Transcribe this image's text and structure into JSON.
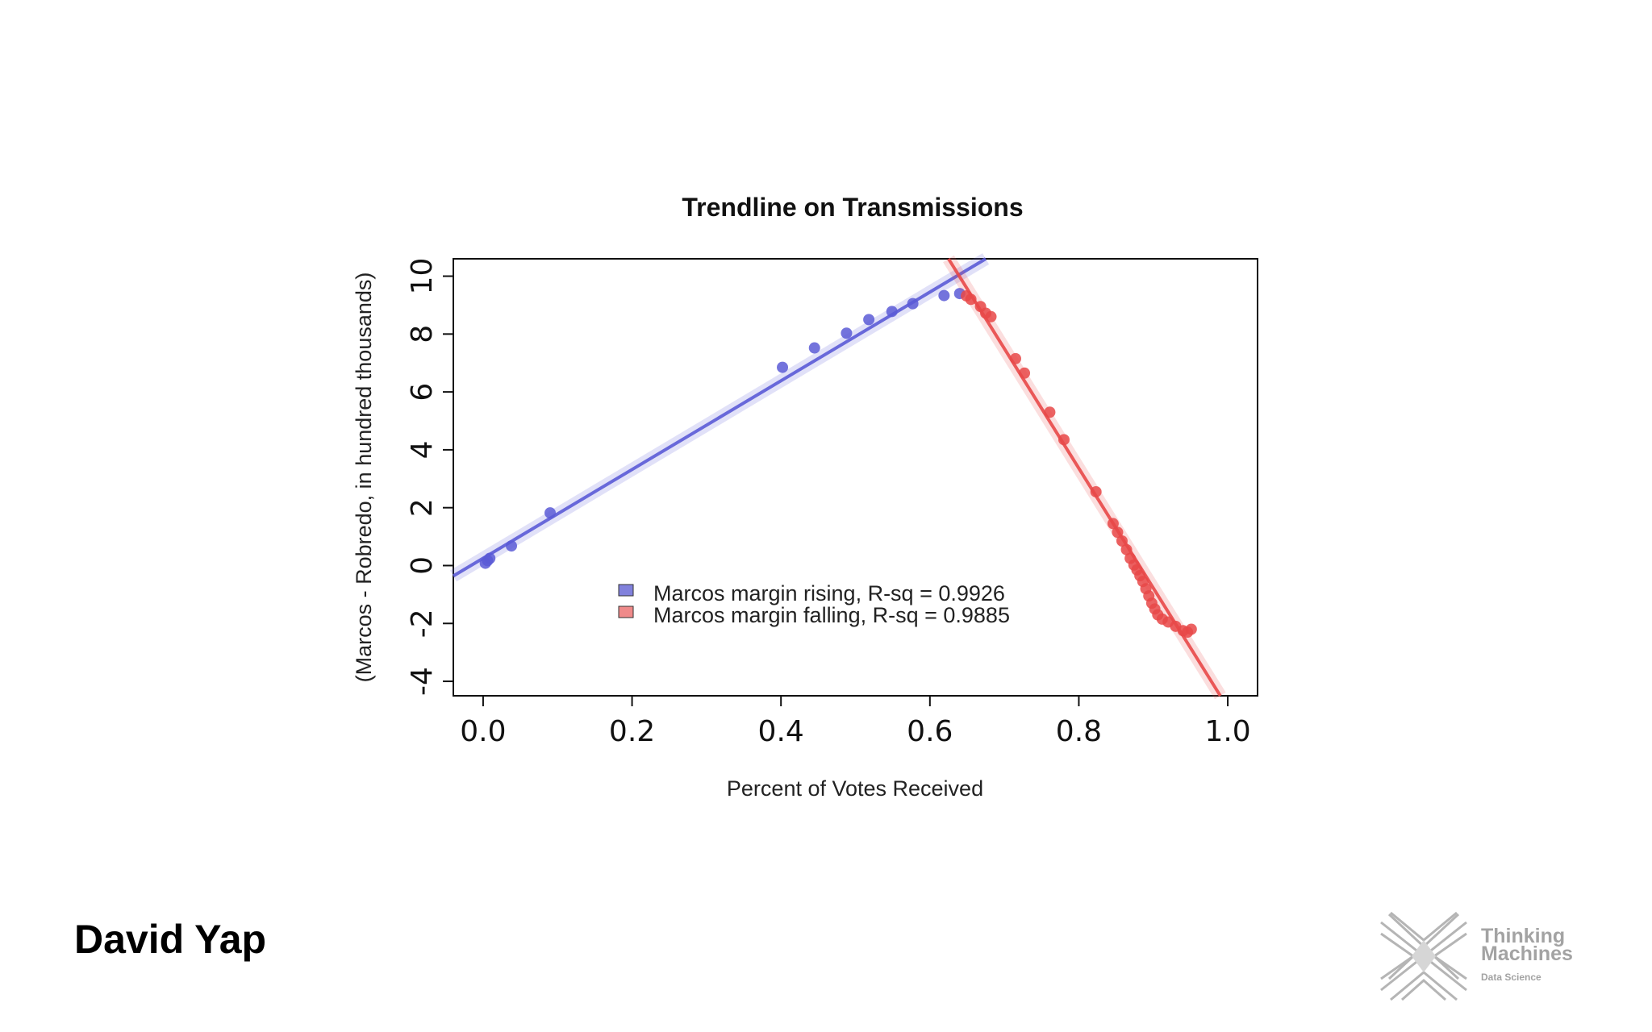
{
  "chart_data": {
    "type": "scatter",
    "title": "Trendline on Transmissions",
    "xlabel": "Percent of Votes Received",
    "ylabel": "(Marcos - Robredo, in hundred thousands)",
    "xlim": [
      -0.04,
      1.04
    ],
    "ylim": [
      -4.5,
      10.6
    ],
    "x_ticks": [
      0.0,
      0.2,
      0.4,
      0.6,
      0.8,
      1.0
    ],
    "x_tick_labels": [
      "0.0",
      "0.2",
      "0.4",
      "0.6",
      "0.8",
      "1.0"
    ],
    "y_ticks": [
      -4,
      -2,
      0,
      2,
      4,
      6,
      8,
      10
    ],
    "y_tick_labels": [
      "-4",
      "-2",
      "0",
      "2",
      "4",
      "6",
      "8",
      "10"
    ],
    "grid": false,
    "legend_position": "bottom-left",
    "series": [
      {
        "name": "Marcos margin rising, R-sq = 0.9926",
        "color": "#5b5bd6",
        "trendline": {
          "x": [
            -0.04,
            0.675
          ],
          "y": [
            -0.36,
            10.6
          ]
        },
        "points": [
          {
            "x": 0.003,
            "y": 0.08
          },
          {
            "x": 0.006,
            "y": 0.17
          },
          {
            "x": 0.009,
            "y": 0.25
          },
          {
            "x": 0.038,
            "y": 0.68
          },
          {
            "x": 0.09,
            "y": 1.82
          },
          {
            "x": 0.402,
            "y": 6.85
          },
          {
            "x": 0.445,
            "y": 7.52
          },
          {
            "x": 0.488,
            "y": 8.03
          },
          {
            "x": 0.518,
            "y": 8.5
          },
          {
            "x": 0.549,
            "y": 8.78
          },
          {
            "x": 0.577,
            "y": 9.05
          },
          {
            "x": 0.619,
            "y": 9.33
          },
          {
            "x": 0.64,
            "y": 9.4
          }
        ]
      },
      {
        "name": "Marcos margin falling, R-sq = 0.9885",
        "color": "#e84848",
        "trendline": {
          "x": [
            0.625,
            0.99
          ],
          "y": [
            10.6,
            -4.5
          ]
        },
        "points": [
          {
            "x": 0.649,
            "y": 9.32
          },
          {
            "x": 0.655,
            "y": 9.2
          },
          {
            "x": 0.668,
            "y": 8.95
          },
          {
            "x": 0.675,
            "y": 8.72
          },
          {
            "x": 0.682,
            "y": 8.6
          },
          {
            "x": 0.715,
            "y": 7.15
          },
          {
            "x": 0.727,
            "y": 6.65
          },
          {
            "x": 0.761,
            "y": 5.3
          },
          {
            "x": 0.78,
            "y": 4.35
          },
          {
            "x": 0.823,
            "y": 2.55
          },
          {
            "x": 0.846,
            "y": 1.45
          },
          {
            "x": 0.852,
            "y": 1.15
          },
          {
            "x": 0.858,
            "y": 0.85
          },
          {
            "x": 0.864,
            "y": 0.55
          },
          {
            "x": 0.869,
            "y": 0.25
          },
          {
            "x": 0.874,
            "y": 0.02
          },
          {
            "x": 0.878,
            "y": -0.15
          },
          {
            "x": 0.882,
            "y": -0.35
          },
          {
            "x": 0.886,
            "y": -0.55
          },
          {
            "x": 0.89,
            "y": -0.8
          },
          {
            "x": 0.894,
            "y": -1.05
          },
          {
            "x": 0.898,
            "y": -1.3
          },
          {
            "x": 0.902,
            "y": -1.5
          },
          {
            "x": 0.906,
            "y": -1.7
          },
          {
            "x": 0.912,
            "y": -1.85
          },
          {
            "x": 0.92,
            "y": -1.95
          },
          {
            "x": 0.93,
            "y": -2.1
          },
          {
            "x": 0.94,
            "y": -2.25
          },
          {
            "x": 0.946,
            "y": -2.3
          },
          {
            "x": 0.951,
            "y": -2.2
          }
        ]
      }
    ]
  },
  "author": "David Yap",
  "logo": {
    "name_line1": "Thinking",
    "name_line2": "Machines",
    "subtitle": "Data Science",
    "color": "#a3a3a3"
  }
}
